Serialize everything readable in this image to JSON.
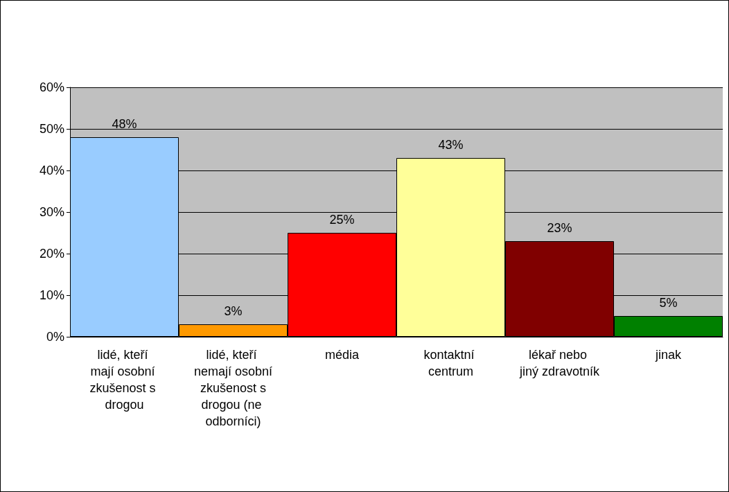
{
  "chart_data": {
    "type": "bar",
    "categories": [
      "lidé, kteří mají osobní zkušenost s drogou",
      "lidé, kteří nemají osobní zkušenost s drogou (ne odborníci)",
      "média",
      "kontaktní centrum",
      "lékař nebo jiný zdravotník",
      "jinak"
    ],
    "values": [
      48,
      3,
      25,
      43,
      23,
      5
    ],
    "colors": [
      "#99ccff",
      "#ff9900",
      "#ff0000",
      "#ffff99",
      "#800000",
      "#008000"
    ],
    "value_labels": [
      "48%",
      "3%",
      "25%",
      "43%",
      "23%",
      "5%"
    ],
    "ylim": [
      0,
      60
    ],
    "yticks": [
      {
        "value": 0,
        "label": "0%"
      },
      {
        "value": 10,
        "label": "10%"
      },
      {
        "value": 20,
        "label": "20%"
      },
      {
        "value": 30,
        "label": "30%"
      },
      {
        "value": 40,
        "label": "40%"
      },
      {
        "value": 50,
        "label": "50%"
      },
      {
        "value": 60,
        "label": "60%"
      }
    ],
    "grid": "y"
  }
}
